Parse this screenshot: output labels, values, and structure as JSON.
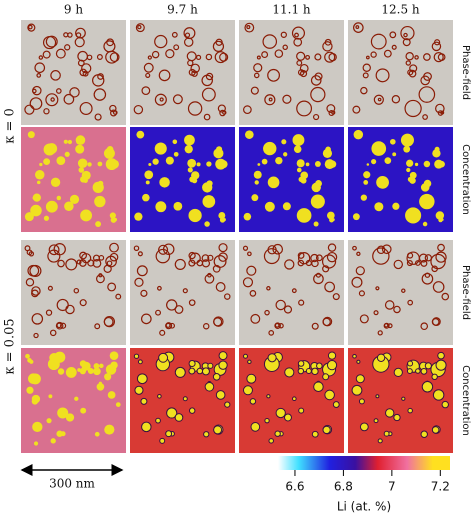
{
  "columns": [
    "9 h",
    "9.7 h",
    "11.1 h",
    "12.5 h"
  ],
  "rows": [
    {
      "label": "κ = 0",
      "panels": [
        "Phase-field",
        "Concentration"
      ]
    },
    {
      "label": "κ = 0.05",
      "panels": [
        "Phase-field",
        "Concentration"
      ]
    }
  ],
  "scale_bar": "300 nm",
  "colorbar": {
    "label": "Li (at. %)",
    "lim": [
      6.53,
      7.24
    ],
    "ticks": [
      6.6,
      6.8,
      7,
      7.2
    ]
  }
}
